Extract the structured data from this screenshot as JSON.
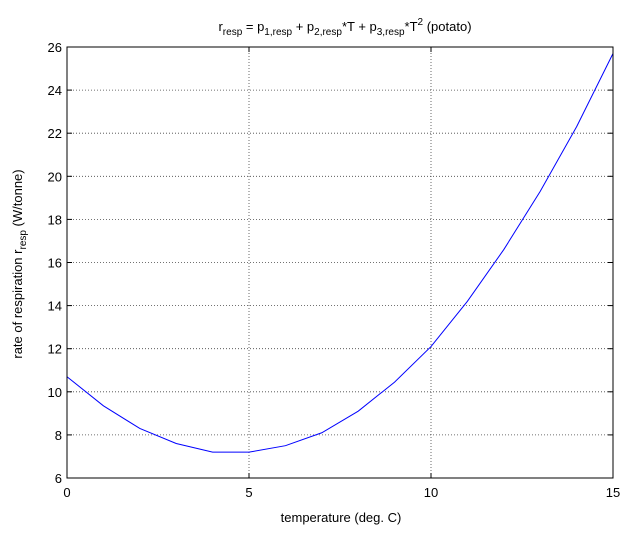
{
  "chart_data": {
    "type": "line",
    "title": {
      "r": "r",
      "r_sub": "resp",
      "eq": " = p",
      "p1_sub": "1,resp",
      "plus1": " + p",
      "p2_sub": "2,resp",
      "t1": "*T + p",
      "p3_sub": "3,resp",
      "t2": "*T",
      "t2_sup": "2",
      "suffix": " (potato)"
    },
    "xlabel": "temperature (deg. C)",
    "ylabel": {
      "main": "rate of respiration r",
      "sub": "resp",
      "unit": " (W/tonne)"
    },
    "xlim": [
      0,
      15
    ],
    "ylim": [
      6,
      26
    ],
    "xticks": [
      0,
      5,
      10,
      15
    ],
    "yticks": [
      6,
      8,
      10,
      12,
      14,
      16,
      18,
      20,
      22,
      24,
      26
    ],
    "grid": true,
    "line_color": "#0000ff",
    "series": [
      {
        "x": [
          0,
          1,
          2,
          3,
          4,
          5,
          6,
          7,
          8,
          9,
          10,
          11,
          12,
          13,
          14,
          15
        ],
        "y": [
          10.7,
          9.35,
          8.3,
          7.6,
          7.2,
          7.2,
          7.5,
          8.1,
          9.1,
          10.45,
          12.1,
          14.2,
          16.6,
          19.3,
          22.3,
          25.7
        ]
      }
    ]
  }
}
